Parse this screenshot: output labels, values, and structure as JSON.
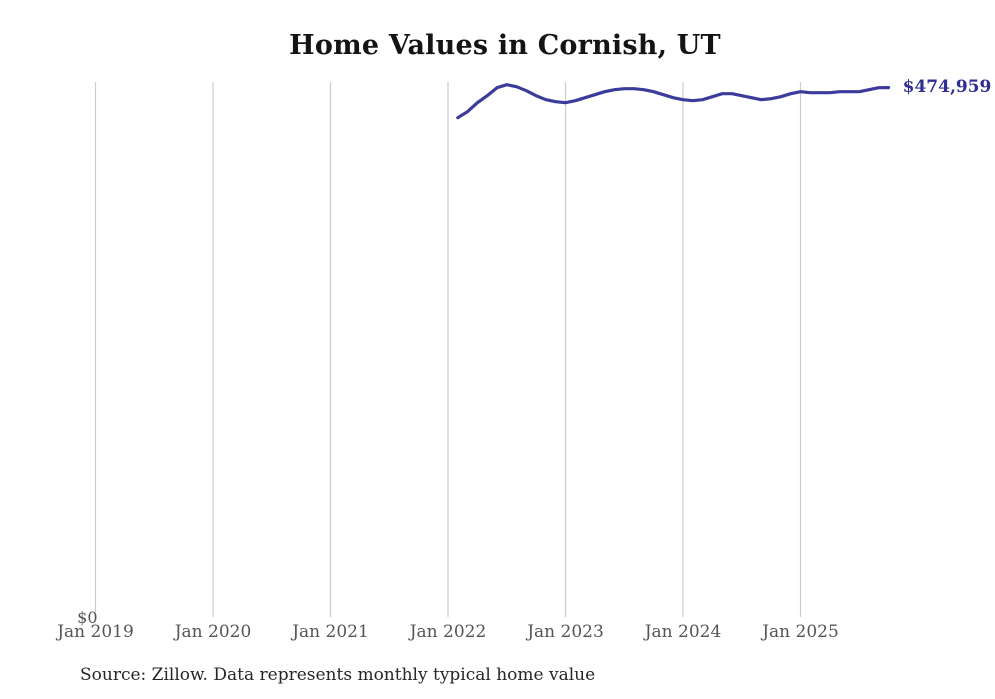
{
  "page": {
    "title": "Home Values in Cornish, UT",
    "source_note": "Source: Zillow. Data represents monthly typical home value"
  },
  "chart_data": {
    "type": "line",
    "title": "Home Values in Cornish, UT",
    "source": "Source: Zillow. Data represents monthly typical home value",
    "y_zero_label": "$0",
    "end_label": "$474,959",
    "last_value": 474959,
    "xlabel": "",
    "ylabel": "",
    "legend_position": "none",
    "grid": "vertical-yearly",
    "ylim": [
      0,
      480000
    ],
    "x_ticks": [
      "Jan 2019",
      "Jan 2020",
      "Jan 2021",
      "Jan 2022",
      "Jan 2023",
      "Jan 2024",
      "Jan 2025"
    ],
    "colors": {
      "line": "#3b3b9c",
      "end_label": "#2e2e94",
      "gridline": "#cccccc",
      "tick_label": "#555555",
      "title": "#141414",
      "source": "#262626",
      "background": "#ffffff"
    },
    "series": [
      {
        "name": "Monthly typical home value",
        "dates": [
          "2022-02",
          "2022-03",
          "2022-04",
          "2022-05",
          "2022-06",
          "2022-07",
          "2022-08",
          "2022-09",
          "2022-10",
          "2022-11",
          "2022-12",
          "2023-01",
          "2023-02",
          "2023-03",
          "2023-04",
          "2023-05",
          "2023-06",
          "2023-07",
          "2023-08",
          "2023-09",
          "2023-10",
          "2023-11",
          "2023-12",
          "2024-01",
          "2024-02",
          "2024-03",
          "2024-04",
          "2024-05",
          "2024-06",
          "2024-07",
          "2024-08",
          "2024-09",
          "2024-10",
          "2024-11",
          "2024-12",
          "2025-01",
          "2025-02",
          "2025-03",
          "2025-04",
          "2025-05",
          "2025-06",
          "2025-07",
          "2025-08",
          "2025-09",
          "2025-10"
        ],
        "values": [
          448000,
          453400,
          461400,
          467700,
          474900,
          477600,
          475800,
          472200,
          467700,
          464100,
          462300,
          461400,
          463200,
          465900,
          468600,
          471300,
          473100,
          474000,
          474000,
          473100,
          471300,
          468600,
          465900,
          464100,
          463200,
          464100,
          466800,
          469500,
          469500,
          467700,
          465900,
          464100,
          465000,
          466800,
          469500,
          471300,
          470400,
          470400,
          470400,
          471300,
          471300,
          471300,
          473100,
          474900,
          474959
        ]
      }
    ]
  }
}
